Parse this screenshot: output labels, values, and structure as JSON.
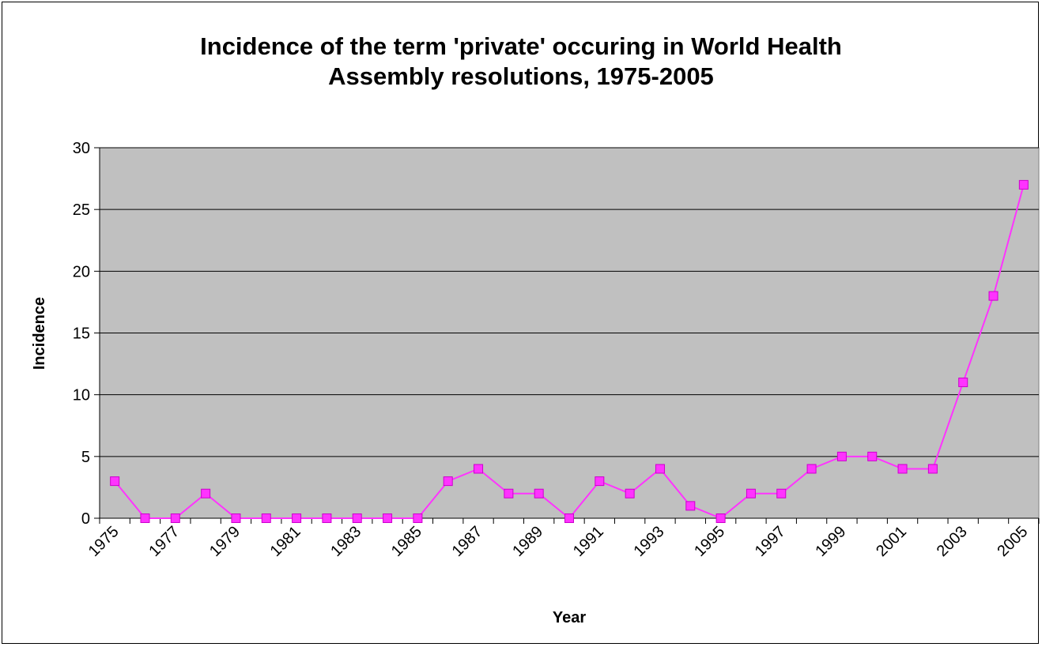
{
  "chart_data": {
    "type": "line",
    "title_lines": [
      "Incidence of the term 'private' occuring in World Health",
      "Assembly resolutions, 1975-2005"
    ],
    "xlabel": "Year",
    "ylabel": "Incidence",
    "x": [
      1975,
      1976,
      1977,
      1978,
      1979,
      1980,
      1981,
      1982,
      1983,
      1984,
      1985,
      1986,
      1987,
      1988,
      1989,
      1990,
      1991,
      1992,
      1993,
      1994,
      1995,
      1996,
      1997,
      1998,
      1999,
      2000,
      2001,
      2002,
      2003,
      2004,
      2005
    ],
    "x_tick_labels": [
      "1975",
      "1977",
      "1979",
      "1981",
      "1983",
      "1985",
      "1987",
      "1989",
      "1991",
      "1993",
      "1995",
      "1997",
      "1999",
      "2001",
      "2003",
      "2005"
    ],
    "series": [
      {
        "values": [
          3,
          0,
          0,
          2,
          0,
          0,
          0,
          0,
          0,
          0,
          0,
          3,
          4,
          2,
          2,
          0,
          3,
          2,
          4,
          1,
          0,
          2,
          2,
          4,
          5,
          5,
          4,
          4,
          11,
          18,
          27
        ],
        "color": "#ff33ff",
        "marker": "square"
      }
    ],
    "ylim": [
      0,
      30
    ],
    "y_ticks": [
      0,
      5,
      10,
      15,
      20,
      25,
      30
    ],
    "grid": true,
    "plot_background": "#c0c0c0"
  }
}
